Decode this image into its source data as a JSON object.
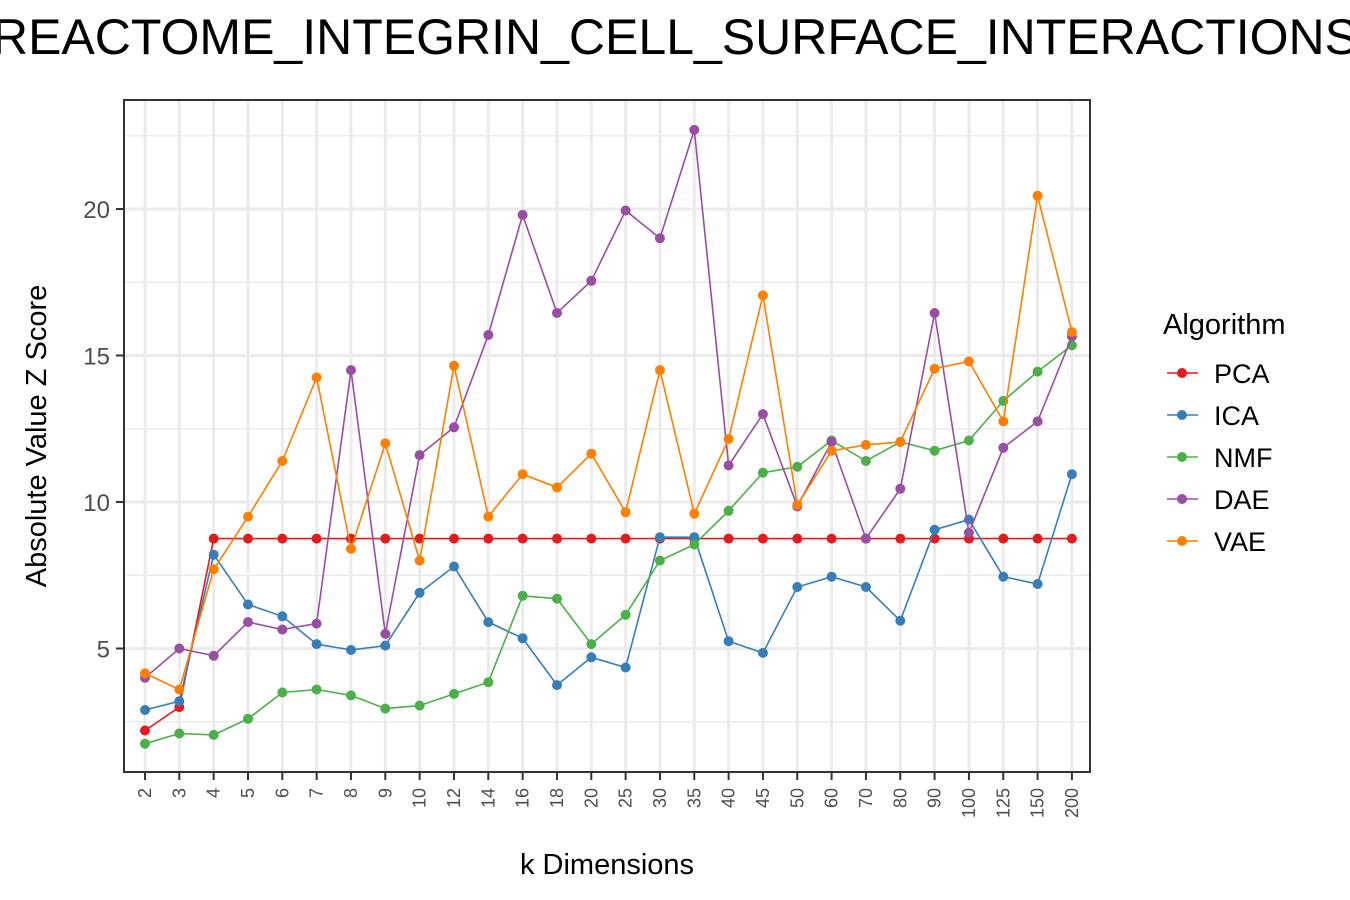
{
  "chart_data": {
    "type": "line",
    "title": "REACTOME_INTEGRIN_CELL_SURFACE_INTERACTIONS",
    "xlabel": "k Dimensions",
    "ylabel": "Absolute Value Z Score",
    "categories": [
      "2",
      "3",
      "4",
      "5",
      "6",
      "7",
      "8",
      "9",
      "10",
      "12",
      "14",
      "16",
      "18",
      "20",
      "25",
      "30",
      "35",
      "40",
      "45",
      "50",
      "60",
      "70",
      "80",
      "90",
      "100",
      "125",
      "150",
      "200"
    ],
    "y_ticks": [
      5,
      10,
      15,
      20
    ],
    "ylim": [
      1.0,
      23.3
    ],
    "grid": true,
    "legend": {
      "title": "Algorithm",
      "position": "right"
    },
    "series": [
      {
        "name": "PCA",
        "color": "#e41a1c",
        "values": [
          2.2,
          3.0,
          8.75,
          8.75,
          8.75,
          8.75,
          8.75,
          8.75,
          8.75,
          8.75,
          8.75,
          8.75,
          8.75,
          8.75,
          8.75,
          8.75,
          8.75,
          8.75,
          8.75,
          8.75,
          8.75,
          8.75,
          8.75,
          8.75,
          8.75,
          8.75,
          8.75,
          8.75
        ]
      },
      {
        "name": "ICA",
        "color": "#377eb8",
        "values": [
          2.9,
          3.2,
          8.2,
          6.5,
          6.1,
          5.15,
          4.95,
          5.1,
          6.9,
          7.8,
          5.9,
          5.35,
          3.75,
          4.7,
          4.35,
          8.8,
          8.8,
          5.25,
          4.85,
          7.1,
          7.45,
          7.1,
          5.95,
          9.05,
          9.4,
          7.45,
          7.2,
          10.95
        ]
      },
      {
        "name": "NMF",
        "color": "#4daf4a",
        "values": [
          1.75,
          2.1,
          2.05,
          2.6,
          3.5,
          3.6,
          3.4,
          2.95,
          3.05,
          3.45,
          3.85,
          6.8,
          6.7,
          5.15,
          6.15,
          8.0,
          8.55,
          9.7,
          11.0,
          11.2,
          12.1,
          11.4,
          12.05,
          11.75,
          12.1,
          13.45,
          14.45,
          15.35
        ]
      },
      {
        "name": "DAE",
        "color": "#984ea3",
        "values": [
          4.0,
          5.0,
          4.75,
          5.9,
          5.65,
          5.85,
          14.5,
          5.5,
          11.6,
          12.55,
          15.7,
          19.8,
          16.45,
          17.55,
          19.95,
          19.0,
          22.7,
          11.25,
          13.0,
          9.85,
          12.05,
          8.75,
          10.45,
          16.45,
          8.95,
          11.85,
          12.75,
          15.65
        ]
      },
      {
        "name": "VAE",
        "color": "#ff7f00",
        "values": [
          4.15,
          3.6,
          7.7,
          9.5,
          11.4,
          14.25,
          8.4,
          12.0,
          8.0,
          14.65,
          9.5,
          10.95,
          10.5,
          11.65,
          9.65,
          14.5,
          9.6,
          12.15,
          17.05,
          9.9,
          11.75,
          11.95,
          12.05,
          14.55,
          14.8,
          12.75,
          20.45,
          15.8
        ]
      }
    ]
  }
}
